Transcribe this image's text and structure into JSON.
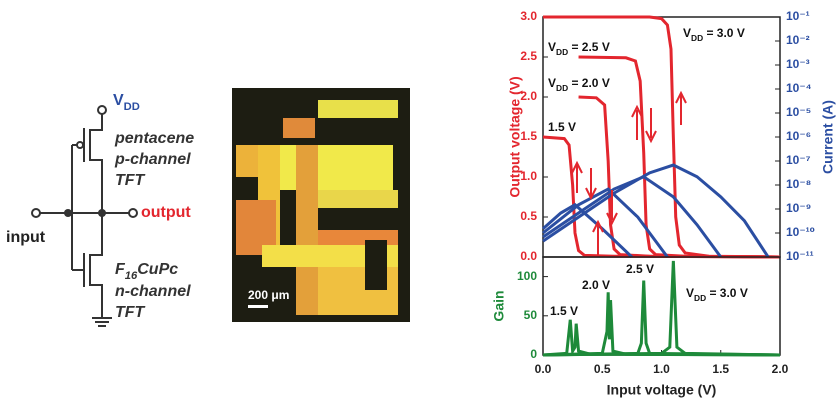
{
  "circuit": {
    "vdd": [
      {
        "text": "V"
      },
      {
        "text": "DD",
        "sub": true
      }
    ],
    "p_label": [
      "pentacene",
      "p-channel",
      "TFT"
    ],
    "output": "output",
    "input": "input",
    "n_material": [
      {
        "text": "F"
      },
      {
        "text": "16",
        "sub": true
      },
      {
        "text": "CuPc"
      }
    ],
    "n_label": [
      "n-channel",
      "TFT"
    ]
  },
  "micrograph": {
    "scale_bar": "200 μm"
  },
  "chart_data": [
    {
      "type": "line",
      "ylabel": "Output voltage (V)",
      "y2label": "Current (A)",
      "xlim": [
        0,
        2.0
      ],
      "ylim": [
        0,
        3.0
      ],
      "yticks": [
        {
          "value": 0,
          "label": "0.0"
        },
        0.5,
        {
          "value": 1,
          "label": "1.0"
        },
        1.5,
        {
          "value": 2,
          "label": "2.0"
        },
        2.5,
        {
          "value": 3,
          "label": "3.0"
        }
      ],
      "y2lim": [
        1e-11,
        0.1
      ],
      "y2log": true,
      "y2ticks": [
        {
          "value": 0.1,
          "label": "10⁻¹"
        },
        {
          "value": 0.01,
          "label": "10⁻²"
        },
        {
          "value": 0.001,
          "label": "10⁻³"
        },
        {
          "value": 0.0001,
          "label": "10⁻⁴"
        },
        {
          "value": 1e-05,
          "label": "10⁻⁵"
        },
        {
          "value": 1e-06,
          "label": "10⁻⁶"
        },
        {
          "value": 1e-07,
          "label": "10⁻⁷"
        },
        {
          "value": 1e-08,
          "label": "10⁻⁸"
        },
        {
          "value": 1e-09,
          "label": "10⁻⁹"
        },
        {
          "value": 1e-10,
          "label": "10⁻¹⁰"
        },
        {
          "value": 1e-11,
          "label": "10⁻¹¹"
        }
      ],
      "ylabel_color": "#e3262e",
      "y2label_color": "#2b4ea2",
      "series": [
        {
          "label": [
            {
              "text": "V"
            },
            {
              "text": "DD",
              "sub": true
            },
            {
              "text": " = 3.0 V"
            }
          ],
          "color": "#e3262e",
          "x": [
            0,
            0.9,
            1.0,
            1.05,
            1.08,
            1.1,
            1.12,
            1.15,
            1.2,
            1.4,
            2.0
          ],
          "values": [
            3.0,
            3.0,
            2.98,
            2.9,
            2.6,
            1.5,
            0.5,
            0.15,
            0.05,
            0.01,
            0
          ]
        },
        {
          "label": [
            {
              "text": "V"
            },
            {
              "text": "DD",
              "sub": true
            },
            {
              "text": " = 2.5 V"
            }
          ],
          "color": "#e3262e",
          "x": [
            0.3,
            0.7,
            0.78,
            0.82,
            0.85,
            0.87,
            0.9,
            0.95,
            1.2,
            2.0
          ],
          "values": [
            2.5,
            2.49,
            2.45,
            2.2,
            1.3,
            0.4,
            0.1,
            0.03,
            0.01,
            0
          ]
        },
        {
          "label": [
            {
              "text": "V"
            },
            {
              "text": "DD",
              "sub": true
            },
            {
              "text": " = 2.0 V"
            }
          ],
          "color": "#e3262e",
          "x": [
            0.3,
            0.45,
            0.52,
            0.55,
            0.57,
            0.6,
            0.65,
            0.9,
            2.0
          ],
          "values": [
            2.0,
            1.99,
            1.9,
            1.2,
            0.4,
            0.1,
            0.03,
            0.01,
            0
          ]
        },
        {
          "label": [
            {
              "text": "1.5 V"
            }
          ],
          "color": "#e3262e",
          "x": [
            0,
            0.18,
            0.22,
            0.25,
            0.27,
            0.3,
            0.35,
            0.6,
            2.0
          ],
          "values": [
            1.5,
            1.48,
            1.4,
            0.9,
            0.3,
            0.08,
            0.02,
            0.01,
            0
          ]
        },
        {
          "axis": "y2",
          "color": "#2b4ea2",
          "x": [
            0,
            0.3,
            0.6,
            0.9,
            1.1,
            1.3,
            1.5,
            1.7,
            1.9
          ],
          "values": [
            4.6e-11,
            4.6e-10,
            4.6e-09,
            3.2e-08,
            6.8e-08,
            2.2e-08,
            3.2e-09,
            3.2e-10,
            1e-11
          ]
        },
        {
          "axis": "y2",
          "color": "#2b4ea2",
          "x": [
            0,
            0.3,
            0.6,
            0.85,
            1.1,
            1.3,
            1.5
          ],
          "values": [
            6.8e-11,
            6.8e-10,
            6.8e-09,
            2.2e-08,
            3.2e-09,
            2.2e-10,
            1e-11
          ]
        },
        {
          "axis": "y2",
          "color": "#2b4ea2",
          "x": [
            0,
            0.3,
            0.55,
            0.8,
            1.05
          ],
          "values": [
            1e-10,
            1.5e-09,
            6.8e-09,
            4.6e-10,
            1e-11
          ]
        },
        {
          "axis": "y2",
          "color": "#2b4ea2",
          "x": [
            0,
            0.15,
            0.27,
            0.5,
            0.75
          ],
          "values": [
            1.5e-10,
            6.8e-10,
            1.5e-09,
            1.5e-10,
            1e-11
          ]
        }
      ]
    },
    {
      "type": "line",
      "xlabel": "Input voltage (V)",
      "ylabel": "Gain",
      "ylabel_color": "#1e8a3a",
      "xlim": [
        0,
        2.0
      ],
      "xticks": [
        {
          "value": 0,
          "label": "0.0"
        },
        0.5,
        {
          "value": 1,
          "label": "1.0"
        },
        1.5,
        {
          "value": 2,
          "label": "2.0"
        }
      ],
      "ylim": [
        0,
        125
      ],
      "yticks": [
        0,
        50,
        100
      ],
      "series": [
        {
          "label": [
            {
              "text": "1.5 V"
            }
          ],
          "color": "#1e8a3a",
          "x": [
            0,
            0.2,
            0.23,
            0.25,
            0.27,
            0.28,
            0.3,
            0.4,
            2.0
          ],
          "values": [
            0,
            2,
            45,
            5,
            10,
            40,
            5,
            1,
            0
          ]
        },
        {
          "label": [
            {
              "text": "2.0 V"
            }
          ],
          "color": "#1e8a3a",
          "x": [
            0,
            0.5,
            0.54,
            0.55,
            0.56,
            0.57,
            0.59,
            0.7,
            2.0
          ],
          "values": [
            0,
            2,
            30,
            80,
            20,
            70,
            5,
            1,
            0
          ]
        },
        {
          "label": [
            {
              "text": "2.5 V"
            }
          ],
          "color": "#1e8a3a",
          "x": [
            0,
            0.8,
            0.83,
            0.85,
            0.87,
            0.9,
            2.0
          ],
          "values": [
            0,
            2,
            15,
            95,
            15,
            2,
            0
          ]
        },
        {
          "label": [
            {
              "text": "V"
            },
            {
              "text": "DD",
              "sub": true
            },
            {
              "text": " = 3.0 V"
            }
          ],
          "color": "#1e8a3a",
          "x": [
            0,
            1.0,
            1.07,
            1.1,
            1.13,
            1.2,
            2.0
          ],
          "values": [
            0,
            2,
            10,
            120,
            10,
            2,
            0
          ]
        }
      ]
    }
  ]
}
